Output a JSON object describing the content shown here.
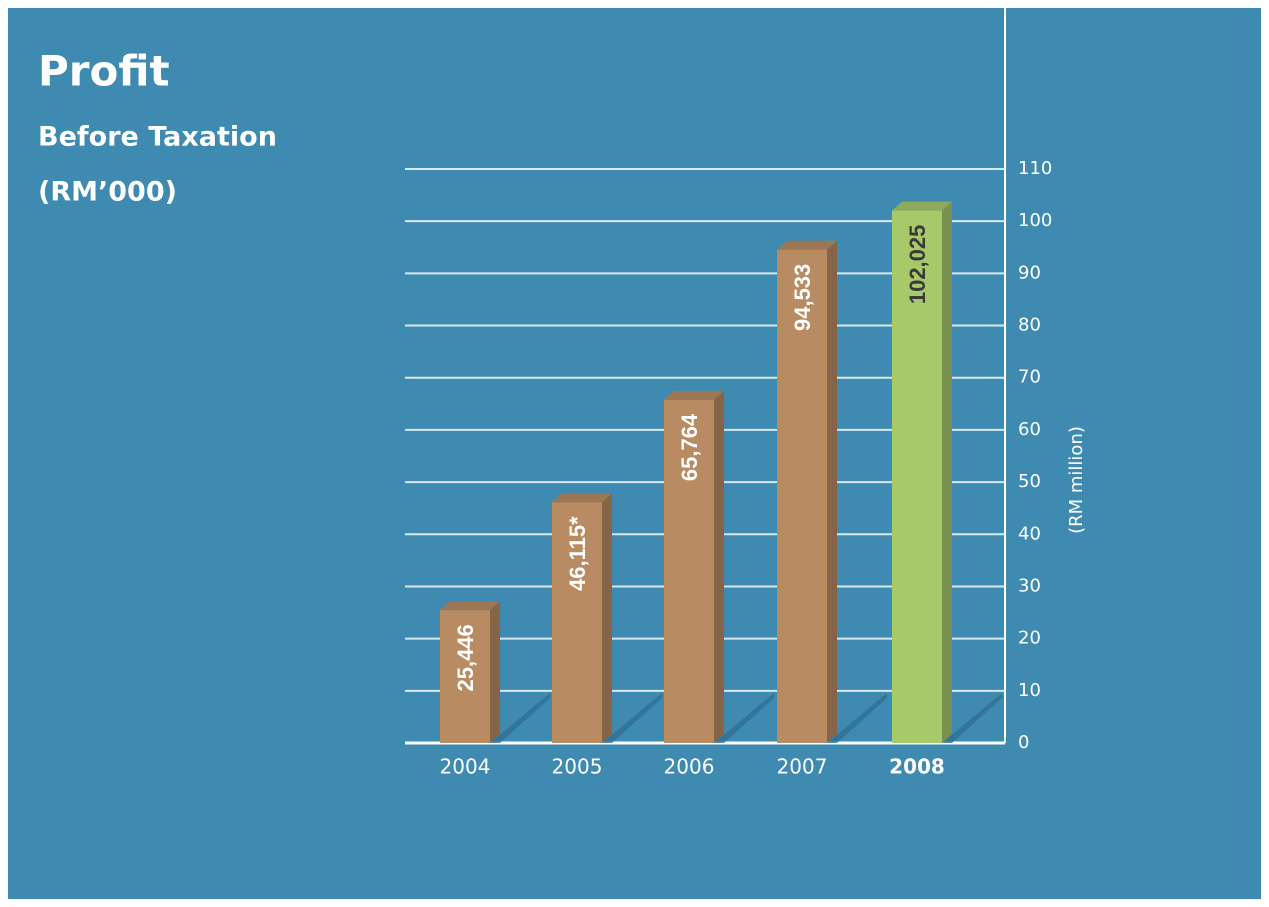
{
  "chart_data": {
    "type": "bar3d",
    "title": "Profit",
    "subtitle": [
      "Before Taxation",
      "(RM’000)"
    ],
    "y_axis_label": "(RM million)",
    "categories": [
      "2004",
      "2005",
      "2006",
      "2007",
      "2008"
    ],
    "values": [
      25.446,
      46.115,
      65.764,
      94.533,
      102.025
    ],
    "value_labels": [
      "25,446",
      "46,115*",
      "65,764",
      "94,533",
      "102,025"
    ],
    "colors": [
      "#b98b62",
      "#b98b62",
      "#b98b62",
      "#b98b62",
      "#a8c96a"
    ],
    "highlight_index": 4,
    "ylim": [
      0,
      110
    ],
    "yticks": [
      0,
      10,
      20,
      30,
      40,
      50,
      60,
      70,
      80,
      90,
      100,
      110
    ],
    "grid": true
  }
}
